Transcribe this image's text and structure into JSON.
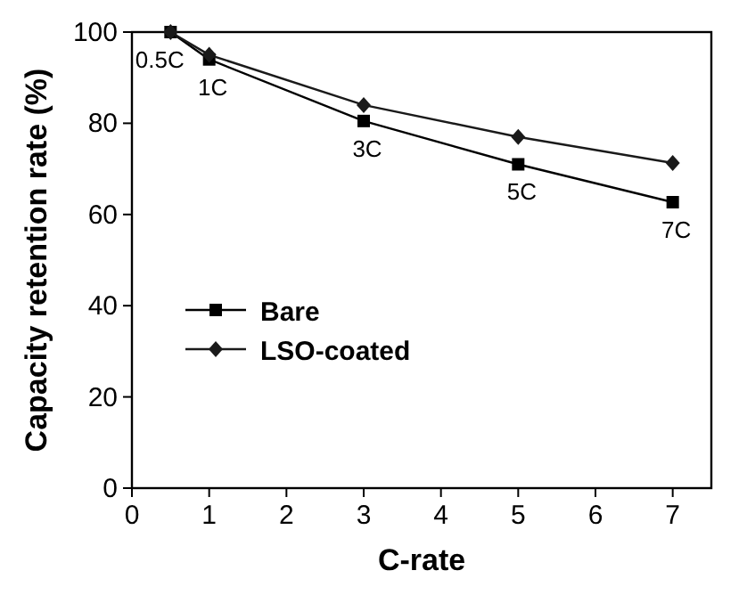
{
  "chart_data": {
    "type": "line",
    "xlabel": "C-rate",
    "ylabel": "Capacity retention rate (%)",
    "x": [
      0.5,
      1,
      3,
      5,
      7
    ],
    "series": [
      {
        "name": "Bare",
        "color": "#000000",
        "marker": "square",
        "values": [
          100,
          94,
          80.5,
          71,
          62.7
        ]
      },
      {
        "name": "LSO-coated",
        "color": "#1a1a1a",
        "marker": "diamond",
        "values": [
          100,
          95,
          84,
          77,
          71.3
        ]
      }
    ],
    "xlim": [
      0,
      7.5
    ],
    "xticks": [
      0,
      1,
      2,
      3,
      4,
      5,
      6,
      7
    ],
    "ylim": [
      0,
      100
    ],
    "yticks": [
      0,
      20,
      40,
      60,
      80,
      100
    ],
    "annotations": [
      {
        "text": "0.5C",
        "x": 0.5,
        "y": 100
      },
      {
        "text": "1C",
        "x": 1,
        "y": 94
      },
      {
        "text": "3C",
        "x": 3,
        "y": 80.5
      },
      {
        "text": "5C",
        "x": 5,
        "y": 71
      },
      {
        "text": "7C",
        "x": 7,
        "y": 62.7
      }
    ],
    "legend": "bottom left",
    "grid": false,
    "line_style": "solid"
  }
}
